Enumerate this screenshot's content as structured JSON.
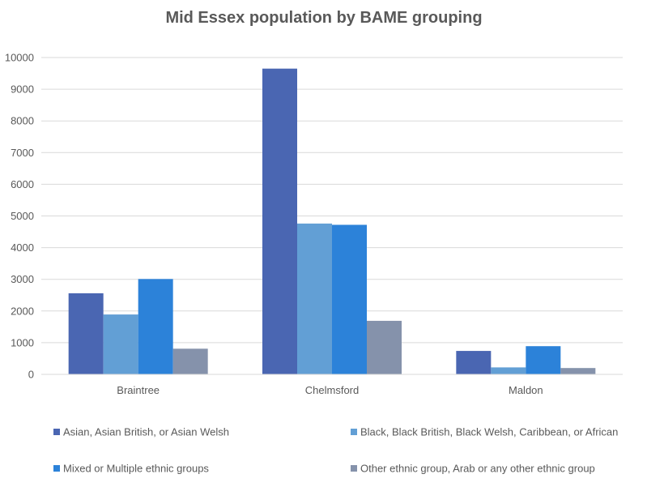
{
  "chart_data": {
    "type": "bar",
    "title": "Mid Essex population by BAME grouping",
    "xlabel": "",
    "ylabel": "",
    "categories": [
      "Braintree",
      "Chelmsford",
      "Maldon"
    ],
    "ylim": [
      0,
      10000
    ],
    "yticks": [
      0,
      1000,
      2000,
      3000,
      4000,
      5000,
      6000,
      7000,
      8000,
      9000,
      10000
    ],
    "grid": true,
    "legend_position": "bottom",
    "series": [
      {
        "name": "Asian, Asian British, or Asian Welsh",
        "color": "#4a66b2",
        "values": [
          2560,
          9650,
          740
        ]
      },
      {
        "name": "Black, Black British, Black Welsh, Caribbean, or African",
        "color": "#629fd5",
        "values": [
          1890,
          4760,
          220
        ]
      },
      {
        "name": "Mixed or Multiple ethnic groups",
        "color": "#2c82d9",
        "values": [
          3010,
          4720,
          890
        ]
      },
      {
        "name": "Other ethnic group, Arab or any other ethnic group",
        "color": "#8592ab",
        "values": [
          810,
          1690,
          200
        ]
      }
    ]
  }
}
